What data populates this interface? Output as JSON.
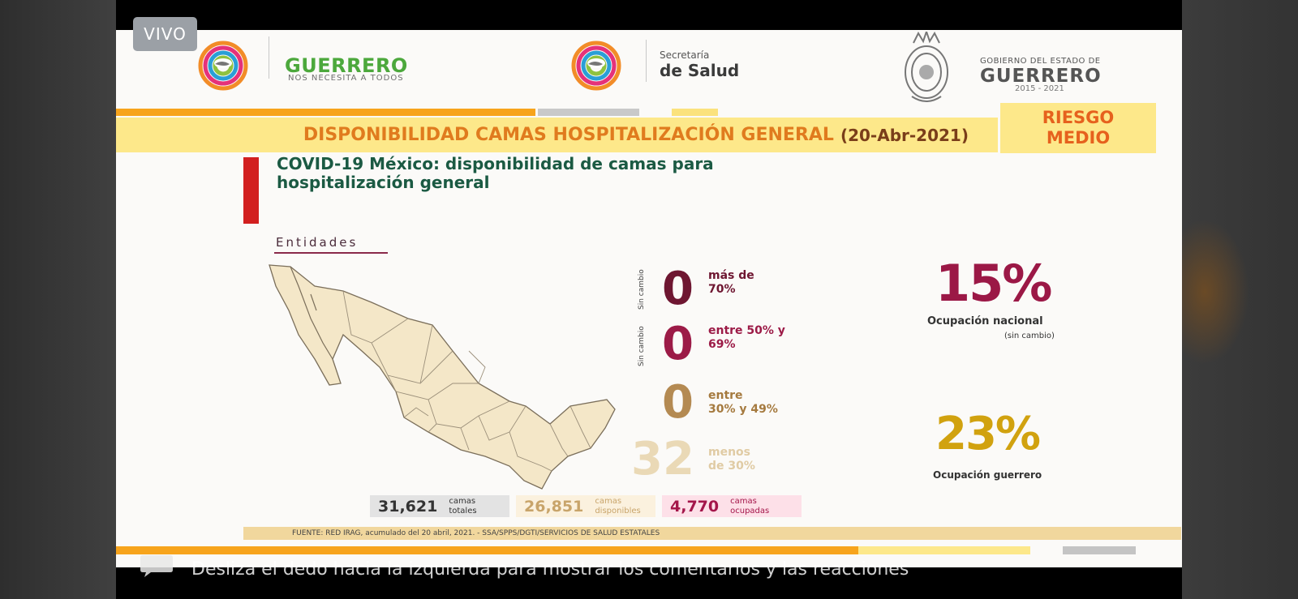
{
  "live_badge": "VIVO",
  "header": {
    "guerrero_title": "GUERRERO",
    "guerrero_slogan": "NOS NECESITA A TODOS",
    "salud_line1": "Secretaría",
    "salud_line2": "de Salud",
    "gobierno_line1": "GOBIERNO DEL ESTADO DE",
    "gobierno_line2": "GUERRERO",
    "gobierno_years": "2015 - 2021"
  },
  "banner": {
    "title": "DISPONIBILIDAD CAMAS HOSPITALIZACIÓN GENERAL",
    "date": "(20-Abr-2021)",
    "risk_line1": "RIESGO",
    "risk_line2": "MEDIO"
  },
  "slide": {
    "heading_line1": "COVID-19 México: disponibilidad de camas para",
    "heading_line2": "hospitalización general",
    "map_label": "Entidades",
    "categories": [
      {
        "count": "0",
        "label_line1": "más de",
        "label_line2": "70%",
        "change": "Sin cambio",
        "color": "#6e1631",
        "label_color": "#6e1631"
      },
      {
        "count": "0",
        "label_line1": "entre 50% y",
        "label_line2": "69%",
        "change": "Sin cambio",
        "color": "#9c1b47",
        "label_color": "#9c1b47"
      },
      {
        "count": "0",
        "label_line1": "entre",
        "label_line2": "30% y 49%",
        "change": "",
        "color": "#b48a52",
        "label_color": "#a57a3f"
      },
      {
        "count": "32",
        "label_line1": "menos",
        "label_line2": "de 30%",
        "change": "",
        "color": "#ead9b6",
        "label_color": "#e0cba4"
      }
    ],
    "national_pct": "15%",
    "national_label": "Ocupación nacional",
    "national_note": "(sin cambio)",
    "guerrero_pct": "23%",
    "guerrero_label": "Ocupación guerrero",
    "stats": [
      {
        "value": "31,621",
        "label_line1": "camas",
        "label_line2": "totales",
        "bg": "#e3e3e3",
        "color": "#333333"
      },
      {
        "value": "26,851",
        "label_line1": "camas",
        "label_line2": "disponibles",
        "bg": "#fbf1de",
        "color": "#c8a46a"
      },
      {
        "value": "4,770",
        "label_line1": "camas",
        "label_line2": "ocupadas",
        "bg": "#fde0e8",
        "color": "#a4164a"
      }
    ],
    "source": "FUENTE: RED IRAG, acumulado del 20 abril, 2021. - SSA/SPPS/DGTI/SERVICIOS DE SALUD ESTATALES"
  },
  "overlay": {
    "swipe_hint": "Desliza el dedo hacia la izquierda para mostrar los comentarios y las reacciones"
  }
}
